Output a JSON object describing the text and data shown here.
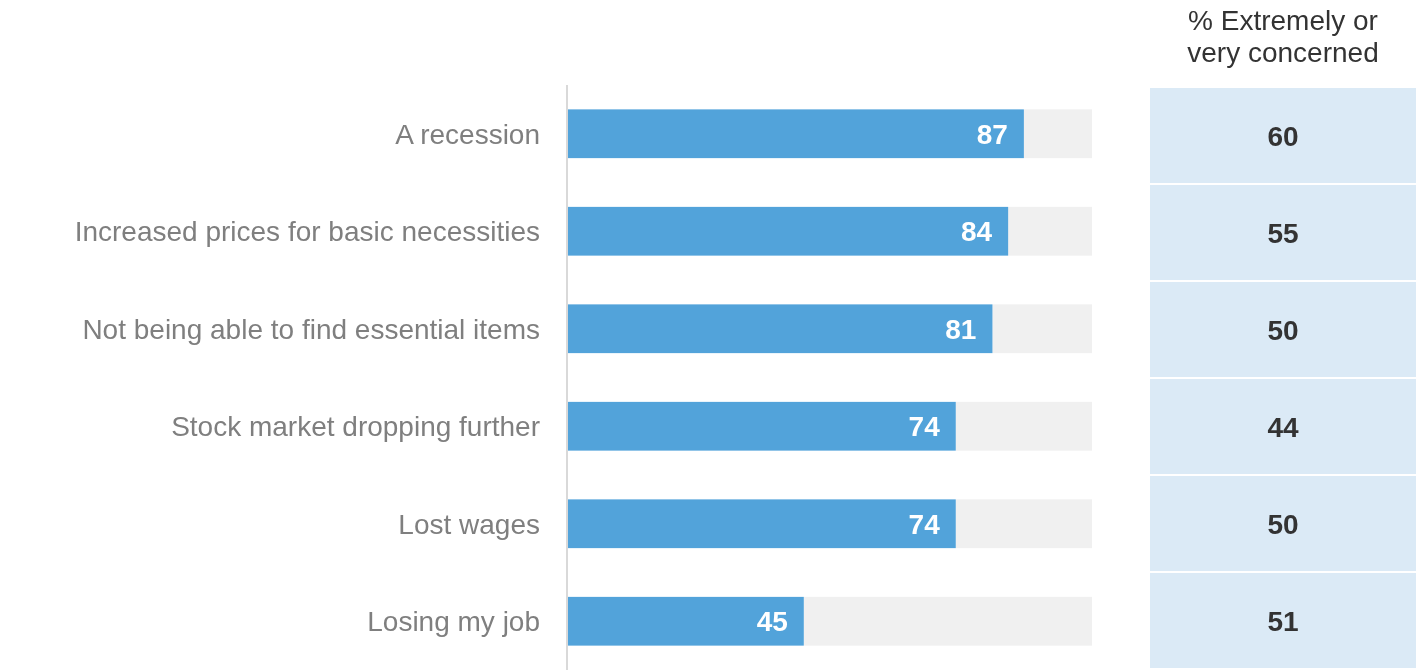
{
  "chart_data": [
    {
      "type": "bar",
      "orientation": "horizontal",
      "categories": [
        "A recession",
        "Increased prices for basic necessities",
        "Not being able to find essential items",
        "Stock market dropping further",
        "Lost wages",
        "Losing my job"
      ],
      "series": [
        {
          "color": "#52a3da",
          "values": [
            87,
            84,
            81,
            74,
            74,
            45
          ]
        }
      ],
      "xlim": [
        0,
        100
      ],
      "tick_labels": "y",
      "data_labels": true
    },
    {
      "type": "other",
      "title": "% Extremely or very concerned",
      "color": "#dbeaf6",
      "values": [
        60,
        55,
        50,
        44,
        50,
        51
      ],
      "data_labels": true
    }
  ]
}
